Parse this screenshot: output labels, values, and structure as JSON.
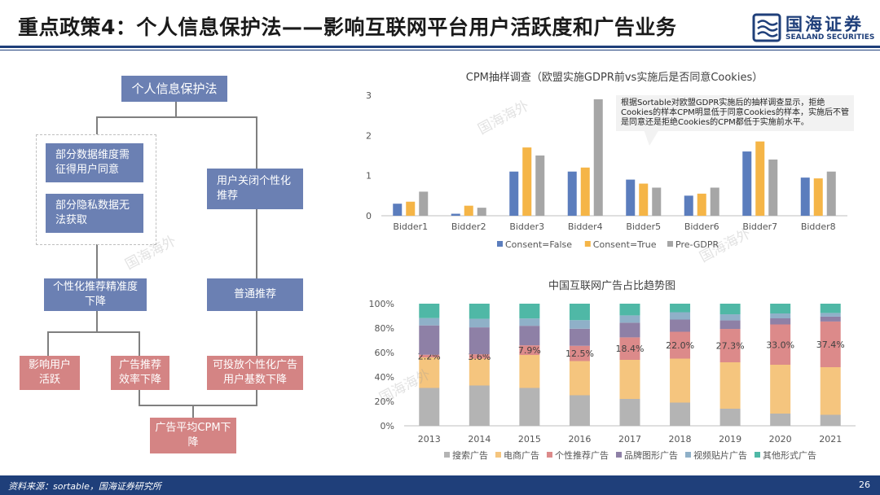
{
  "header": {
    "title": "重点政策4：个人信息保护法——影响互联网平台用户活跃度和广告业务",
    "logo_cn": "国海证券",
    "logo_en": "SEALAND SECURITIES"
  },
  "flowchart": {
    "root": "个人信息保护法",
    "left_a": "部分数据维度需征得用户同意",
    "left_b": "部分隐私数据无法获取",
    "right_a": "用户关闭个性化推荐",
    "mid_left": "个性化推荐精准度下降",
    "mid_right": "普通推荐",
    "out_1": "影响用户活跃",
    "out_2": "广告推荐效率下降",
    "out_3": "可投放个性化广告用户基数下降",
    "final": "广告平均CPM下降"
  },
  "watermark": "国海海外",
  "callout": "根据Sortable对欧盟GDPR实施后的抽样调查显示，拒绝Cookies的样本CPM明显低于同意Cookies的样本，实施后不管是同意还是拒绝Cookies的CPM都低于实施前水平。",
  "footer": {
    "source": "资料来源：sortable，国海证券研究所",
    "page": "26"
  },
  "chart_data": [
    {
      "type": "bar",
      "title": "CPM抽样调查（欧盟实施GDPR前vs实施后是否同意Cookies）",
      "categories": [
        "Bidder1",
        "Bidder2",
        "Bidder3",
        "Bidder4",
        "Bidder5",
        "Bidder6",
        "Bidder7",
        "Bidder8"
      ],
      "series": [
        {
          "name": "Consent=False",
          "color": "#5b7dbd",
          "values": [
            0.3,
            0.05,
            1.1,
            1.1,
            0.9,
            0.5,
            1.6,
            0.95
          ]
        },
        {
          "name": "Consent=True",
          "color": "#f5b547",
          "values": [
            0.35,
            0.25,
            1.7,
            1.2,
            0.8,
            0.55,
            1.85,
            0.93
          ]
        },
        {
          "name": "Pre-GDPR",
          "color": "#a6a6a6",
          "values": [
            0.6,
            0.2,
            1.5,
            2.9,
            0.7,
            0.7,
            1.4,
            1.1
          ]
        }
      ],
      "ylim": [
        0,
        3
      ],
      "yticks": [
        "0",
        "1",
        "2",
        "3"
      ],
      "legend": "bottom"
    },
    {
      "type": "bar",
      "stacked": true,
      "title": "中国互联网广告占比趋势图",
      "categories": [
        "2013",
        "2014",
        "2015",
        "2016",
        "2017",
        "2018",
        "2019",
        "2020",
        "2021"
      ],
      "series": [
        {
          "name": "搜索广告",
          "color": "#b4b4b4",
          "values": [
            31,
            33,
            31,
            25,
            22,
            19,
            14,
            10,
            9
          ]
        },
        {
          "name": "电商广告",
          "color": "#f5c57e",
          "values": [
            25,
            22,
            27,
            28,
            32,
            36,
            38,
            40,
            39
          ]
        },
        {
          "name": "个性推荐广告",
          "color": "#dc8a8a",
          "values": [
            2.2,
            3.6,
            7.9,
            12.5,
            18.4,
            22.0,
            27.3,
            33.0,
            37.4
          ]
        },
        {
          "name": "品牌图形广告",
          "color": "#8e80a6",
          "values": [
            24,
            22,
            16,
            14,
            12,
            10,
            7,
            5,
            4
          ]
        },
        {
          "name": "视频贴片广告",
          "color": "#8fb0c8",
          "values": [
            6,
            7,
            6,
            7,
            6,
            6,
            5,
            4,
            3
          ]
        },
        {
          "name": "其他形式广告",
          "color": "#4fb8a6",
          "values": [
            11.8,
            12.4,
            12.1,
            13.5,
            9.6,
            7.0,
            8.7,
            8.0,
            7.6
          ]
        }
      ],
      "data_labels": [
        "2.2%",
        "3.6%",
        "7.9%",
        "12.5%",
        "18.4%",
        "22.0%",
        "27.3%",
        "33.0%",
        "37.4%"
      ],
      "yticks": [
        "0%",
        "20%",
        "40%",
        "60%",
        "80%",
        "100%"
      ],
      "ylim": [
        0,
        100
      ],
      "legend": "bottom"
    }
  ]
}
